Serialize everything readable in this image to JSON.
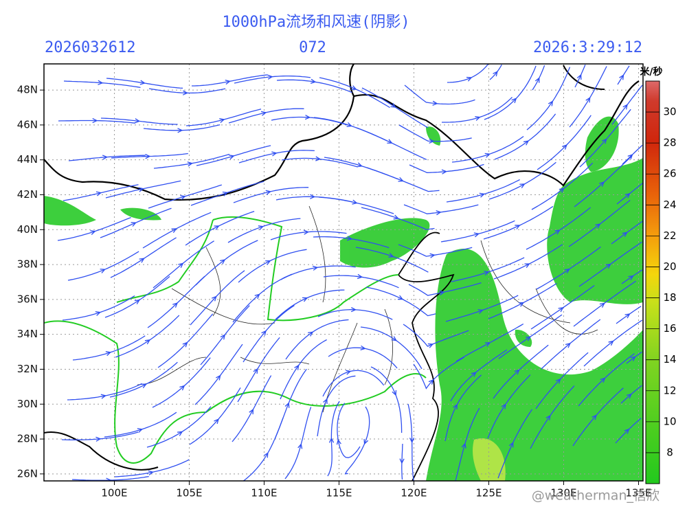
{
  "header": {
    "title": "1000hPa流场和风速(阴影)",
    "init_time": "2026032612",
    "forecast_hour": "072",
    "valid_time": "2026:3:29:12"
  },
  "map": {
    "lonlim": [
      95.3,
      135.3
    ],
    "latlim": [
      25.6,
      49.5
    ],
    "lon_ticks": [
      {
        "value": 100,
        "label": "100E"
      },
      {
        "value": 105,
        "label": "105E"
      },
      {
        "value": 110,
        "label": "110E"
      },
      {
        "value": 115,
        "label": "115E"
      },
      {
        "value": 120,
        "label": "120E"
      },
      {
        "value": 125,
        "label": "125E"
      },
      {
        "value": 130,
        "label": "130E"
      },
      {
        "value": 135,
        "label": "135E"
      }
    ],
    "lat_ticks": [
      {
        "value": 26,
        "label": "26N"
      },
      {
        "value": 28,
        "label": "28N"
      },
      {
        "value": 30,
        "label": "30N"
      },
      {
        "value": 32,
        "label": "32N"
      },
      {
        "value": 34,
        "label": "34N"
      },
      {
        "value": 36,
        "label": "36N"
      },
      {
        "value": 38,
        "label": "38N"
      },
      {
        "value": 40,
        "label": "40N"
      },
      {
        "value": 42,
        "label": "42N"
      },
      {
        "value": 44,
        "label": "44N"
      },
      {
        "value": 46,
        "label": "46N"
      },
      {
        "value": 48,
        "label": "48N"
      }
    ]
  },
  "colorbar": {
    "unit": "米/秒",
    "lim": [
      6,
      32
    ],
    "ticks": [
      8,
      10,
      12,
      14,
      16,
      18,
      20,
      22,
      24,
      26,
      28,
      30
    ]
  },
  "watermark": "@weatherman_信欣"
}
